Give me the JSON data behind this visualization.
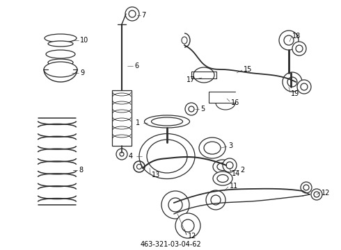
{
  "title": "463-321-03-04-62",
  "bg_color": "#ffffff",
  "line_color": "#2a2a2a",
  "text_color": "#000000",
  "figsize": [
    4.9,
    3.6
  ],
  "dpi": 100,
  "xlim": [
    0,
    490
  ],
  "ylim": [
    0,
    360
  ]
}
